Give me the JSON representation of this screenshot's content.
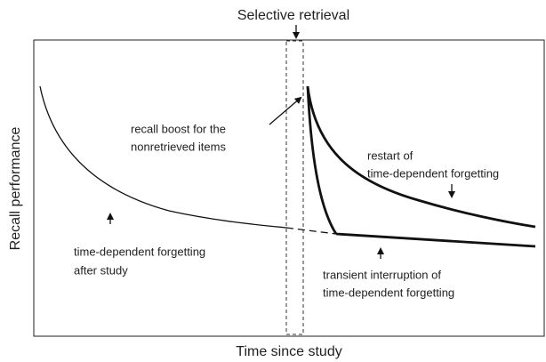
{
  "title": "Selective retrieval",
  "y_axis_label": "Recall performance",
  "x_axis_label": "Time since study",
  "annotations": [
    {
      "lines": [
        "recall boost for the",
        "nonretrieved items"
      ]
    },
    {
      "lines": [
        "restart of",
        "time-dependent forgetting"
      ]
    },
    {
      "lines": [
        "time-dependent forgetting",
        "after study"
      ]
    },
    {
      "lines": [
        "transient interruption of",
        "time-dependent forgetting"
      ]
    }
  ]
}
